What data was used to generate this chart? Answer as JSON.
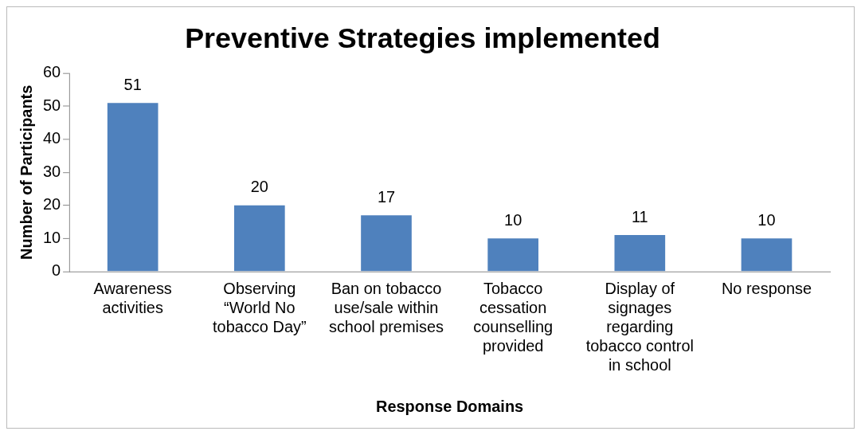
{
  "chart_data": {
    "type": "bar",
    "title": "Preventive Strategies implemented",
    "xlabel": "Response Domains",
    "ylabel": "Number of Participants",
    "categories": [
      "Awareness activities",
      "Observing “World No tobacco Day”",
      "Ban on tobacco use/sale within school premises",
      "Tobacco cessation counselling provided",
      "Display of signages regarding tobacco control in school",
      "No response"
    ],
    "values": [
      51,
      20,
      17,
      10,
      11,
      10
    ],
    "color": "#4f81bd",
    "ylim": [
      0,
      60
    ],
    "yticks": [
      0,
      10,
      20,
      30,
      40,
      50,
      60
    ],
    "grid": false,
    "legend": false,
    "data_labels": true
  }
}
